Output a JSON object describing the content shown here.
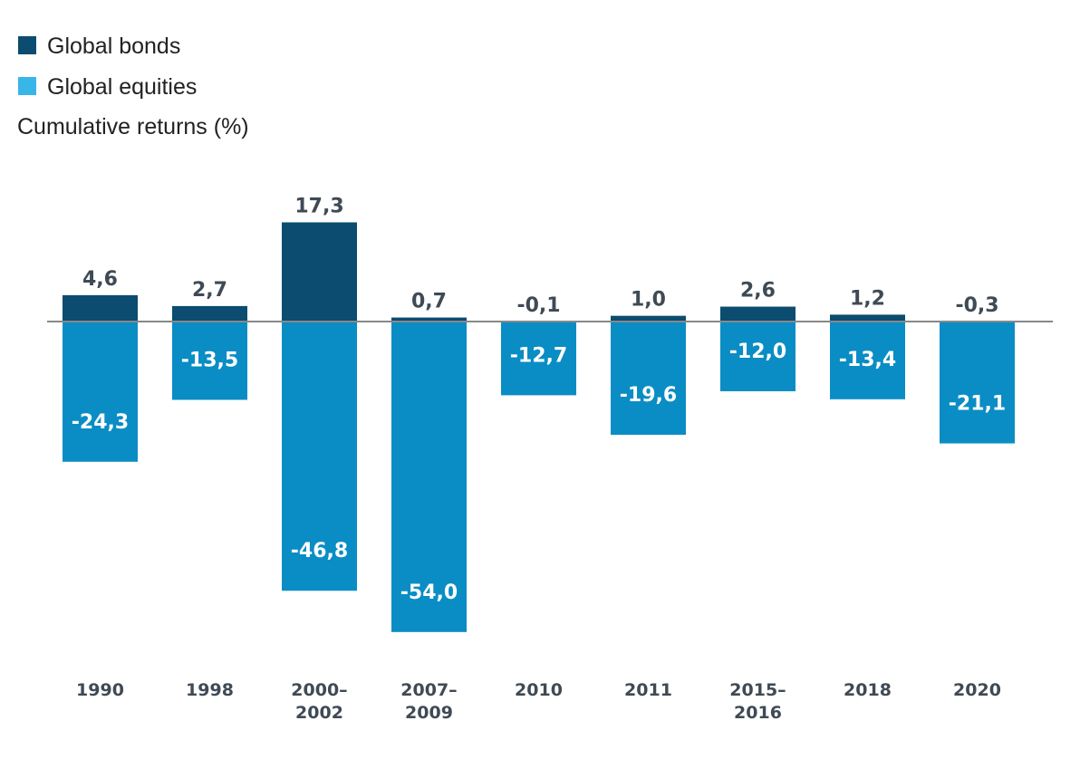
{
  "legend": {
    "items": [
      {
        "label": "Global bonds",
        "color": "#0b4c70"
      },
      {
        "label": "Global equities",
        "color": "#39b6e8"
      }
    ]
  },
  "y_label": "Cumulative returns (%)",
  "colors": {
    "bonds_bar": "#0b4c70",
    "equities_bar": "#0a8dc4",
    "baseline": "#888888"
  },
  "chart_data": {
    "type": "bar",
    "categories": [
      "1990",
      "1998",
      "2000–2002",
      "2007–2009",
      "2010",
      "2011",
      "2015–2016",
      "2018",
      "2020"
    ],
    "series": [
      {
        "name": "Global bonds",
        "values": [
          4.6,
          2.7,
          17.3,
          0.7,
          -0.1,
          1.0,
          2.6,
          1.2,
          -0.3
        ]
      },
      {
        "name": "Global equities",
        "values": [
          -24.3,
          -13.5,
          -46.8,
          -54.0,
          -12.7,
          -19.6,
          -12.0,
          -13.4,
          -21.1
        ]
      }
    ],
    "value_labels": {
      "Global bonds": [
        "4,6",
        "2,7",
        "17,3",
        "0,7",
        "-0,1",
        "1,0",
        "2,6",
        "1,2",
        "-0,3"
      ],
      "Global equities": [
        "-24,3",
        "-13,5",
        "-46,8",
        "-54,0",
        "-12,7",
        "-19,6",
        "-12,0",
        "-13,4",
        "-21,1"
      ]
    },
    "ylabel": "Cumulative returns (%)",
    "ylim": [
      -54.0,
      17.3
    ],
    "grid": false,
    "legend_position": "top-left"
  }
}
